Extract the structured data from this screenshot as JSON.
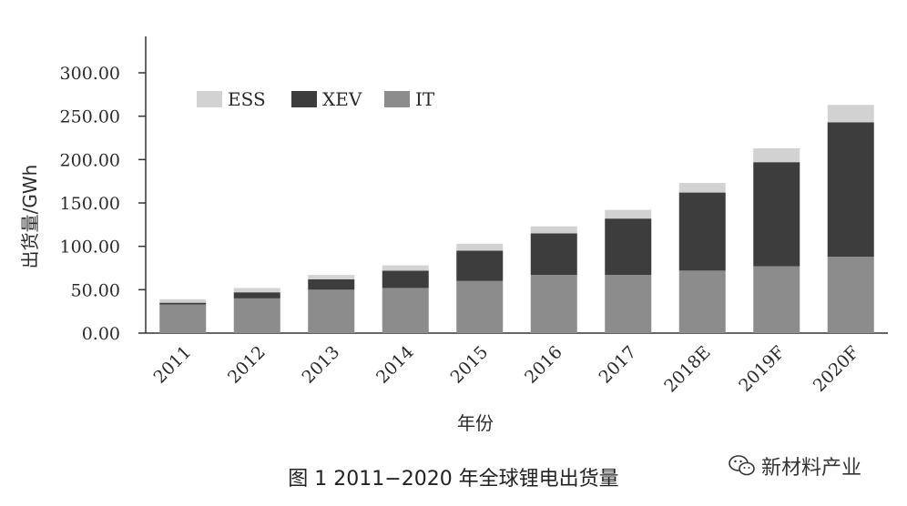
{
  "chart_data": {
    "type": "bar",
    "stacked": true,
    "categories": [
      "2011",
      "2012",
      "2013",
      "2014",
      "2015",
      "2016",
      "2017",
      "2018E",
      "2019F",
      "2020F"
    ],
    "series": [
      {
        "name": "IT",
        "color": "#8c8c8c",
        "values": [
          33,
          40,
          50,
          52,
          60,
          67,
          67,
          72,
          77,
          88
        ]
      },
      {
        "name": "XEV",
        "color": "#3d3d3d",
        "values": [
          2,
          7,
          12,
          20,
          35,
          48,
          65,
          90,
          120,
          155
        ]
      },
      {
        "name": "ESS",
        "color": "#d2d2d2",
        "values": [
          4,
          5,
          5,
          6,
          8,
          8,
          10,
          11,
          16,
          20
        ]
      }
    ],
    "legend_order": [
      "ESS",
      "XEV",
      "IT"
    ],
    "legend_position": "top-left",
    "ylim": [
      0,
      300
    ],
    "yticks": [
      "0.00",
      "50.00",
      "100.00",
      "150.00",
      "200.00",
      "250.00",
      "300.00"
    ],
    "ylabel": "出货量/GWh",
    "xlabel": "年份",
    "grid": false
  },
  "caption": "图 1  2011−2020 年全球锂电出货量",
  "watermark": {
    "text": "新材料产业",
    "icon": "wechat-icon"
  }
}
